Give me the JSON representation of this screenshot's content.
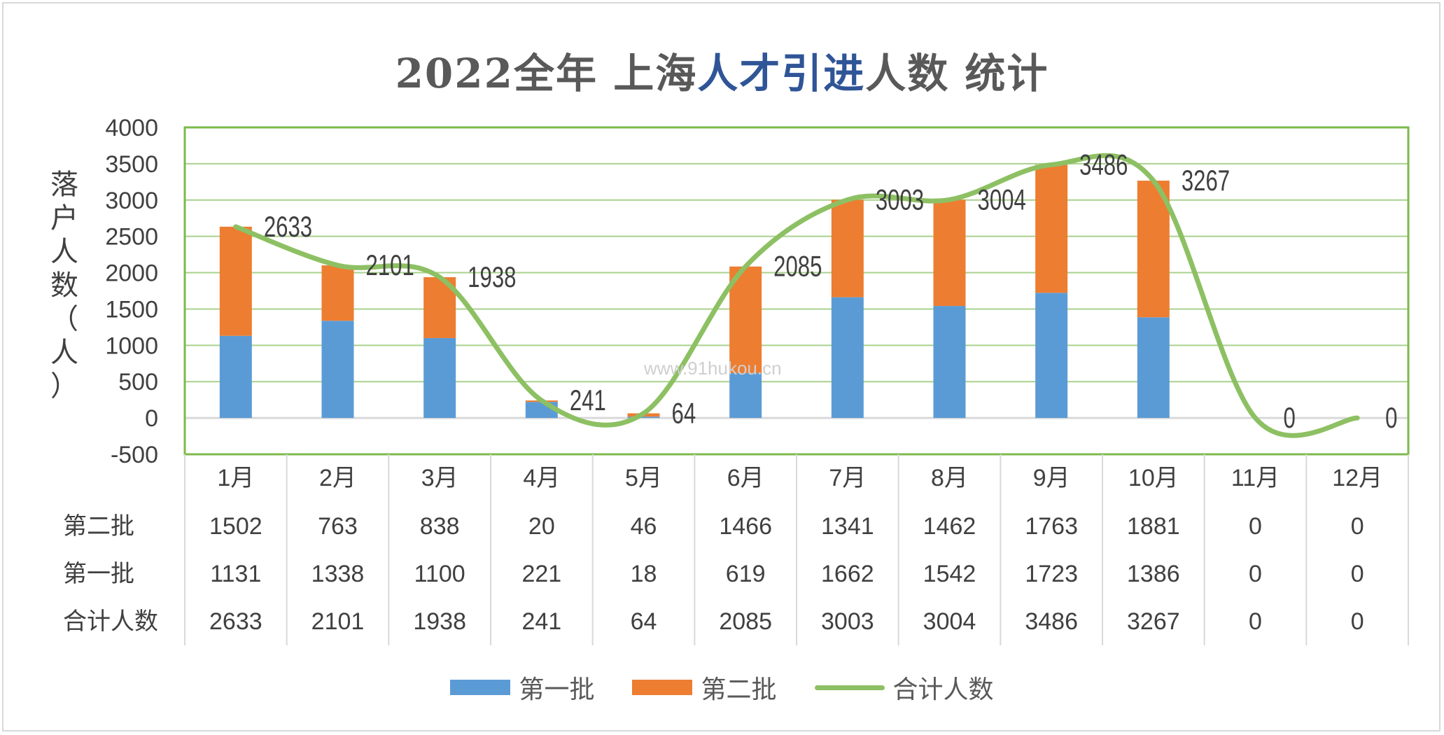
{
  "title": {
    "seg1": "2022全年  上海",
    "seg2": "人才引进",
    "seg3": "人数  统计",
    "color_main": "#595959",
    "color_accent": "#2f5597"
  },
  "watermark": "www.91hukou.cn",
  "colors": {
    "batch1": "#5b9bd5",
    "batch2": "#ed7d31",
    "total": "#8dc063",
    "grid": "#a9d18e",
    "plot_border": "#7cba4c",
    "text": "#404040"
  },
  "chart_data": {
    "type": "bar",
    "stacked": true,
    "title": "2022全年  上海人才引进人数  统计",
    "ylabel": "落户人数（人）",
    "ylabel_chars": [
      "落",
      "户",
      "人",
      "数",
      "（",
      "人",
      "）"
    ],
    "xlabel": "",
    "ylim": [
      -500,
      4000
    ],
    "yticks": [
      -500,
      0,
      500,
      1000,
      1500,
      2000,
      2500,
      3000,
      3500,
      4000
    ],
    "categories": [
      "1月",
      "2月",
      "3月",
      "4月",
      "5月",
      "6月",
      "7月",
      "8月",
      "9月",
      "10月",
      "11月",
      "12月"
    ],
    "series": [
      {
        "name": "第一批",
        "kind": "bar",
        "values": [
          1131,
          1338,
          1100,
          221,
          18,
          619,
          1662,
          1542,
          1723,
          1386,
          0,
          0
        ]
      },
      {
        "name": "第二批",
        "kind": "bar",
        "values": [
          1502,
          763,
          838,
          20,
          46,
          1466,
          1341,
          1462,
          1763,
          1881,
          0,
          0
        ]
      },
      {
        "name": "合计人数",
        "kind": "line",
        "values": [
          2633,
          2101,
          1938,
          241,
          64,
          2085,
          3003,
          3004,
          3486,
          3267,
          0,
          0
        ]
      }
    ],
    "table_rows": [
      {
        "label": "第二批",
        "values": [
          "1502",
          "763",
          "838",
          "20",
          "46",
          "1466",
          "1341",
          "1462",
          "1763",
          "1881",
          "0",
          "0"
        ]
      },
      {
        "label": "第一批",
        "values": [
          "1131",
          "1338",
          "1100",
          "221",
          "18",
          "619",
          "1662",
          "1542",
          "1723",
          "1386",
          "0",
          "0"
        ]
      },
      {
        "label": "合计人数",
        "values": [
          "2633",
          "2101",
          "1938",
          "241",
          "64",
          "2085",
          "3003",
          "3004",
          "3486",
          "3267",
          "0",
          "0"
        ]
      }
    ],
    "data_labels": [
      "2633",
      "2101",
      "1938",
      "241",
      "64",
      "2085",
      "3003",
      "3004",
      "3486",
      "3267",
      "0",
      "0"
    ],
    "legend": [
      "第一批",
      "第二批",
      "合计人数"
    ],
    "legend_position": "bottom",
    "grid": true
  }
}
